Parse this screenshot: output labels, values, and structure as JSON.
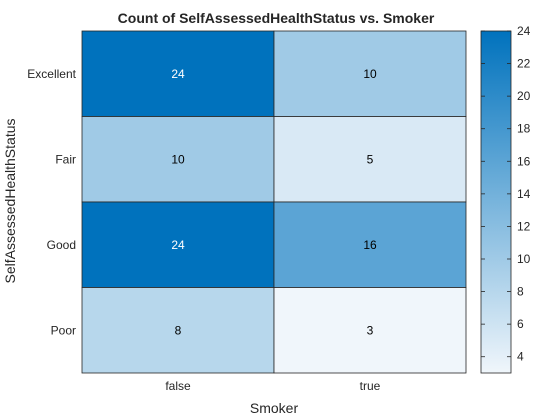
{
  "chart_data": {
    "type": "heatmap",
    "title": "Count of SelfAssessedHealthStatus vs. Smoker",
    "xlabel": "Smoker",
    "ylabel": "SelfAssessedHealthStatus",
    "x_categories": [
      "false",
      "true"
    ],
    "y_categories": [
      "Excellent",
      "Fair",
      "Good",
      "Poor"
    ],
    "values": [
      [
        24,
        10
      ],
      [
        10,
        5
      ],
      [
        24,
        16
      ],
      [
        8,
        3
      ]
    ],
    "colorbar": {
      "min": 3,
      "max": 24,
      "ticks": [
        4,
        6,
        8,
        10,
        12,
        14,
        16,
        18,
        20,
        22,
        24
      ],
      "low_color": "#f0f6fb",
      "high_color": "#0072bd"
    }
  }
}
